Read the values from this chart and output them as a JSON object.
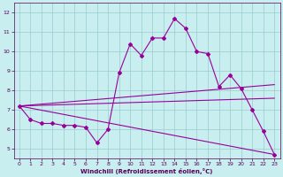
{
  "xlabel": "Windchill (Refroidissement éolien,°C)",
  "ylabel": "",
  "xlim": [
    -0.5,
    23.5
  ],
  "ylim": [
    4.5,
    12.5
  ],
  "xticks": [
    0,
    1,
    2,
    3,
    4,
    5,
    6,
    7,
    8,
    9,
    10,
    11,
    12,
    13,
    14,
    15,
    16,
    17,
    18,
    19,
    20,
    21,
    22,
    23
  ],
  "yticks": [
    5,
    6,
    7,
    8,
    9,
    10,
    11,
    12
  ],
  "bg_color": "#c8eef0",
  "line_color": "#990099",
  "grid_color": "#99cccc",
  "line1_x": [
    0,
    1,
    2,
    3,
    4,
    5,
    6,
    7,
    8,
    9,
    10,
    11,
    12,
    13,
    14,
    15,
    16,
    17,
    18,
    19,
    20,
    21,
    22,
    23
  ],
  "line1_y": [
    7.2,
    6.5,
    6.3,
    6.3,
    6.2,
    6.2,
    6.1,
    5.3,
    6.0,
    8.9,
    10.4,
    9.8,
    10.7,
    10.7,
    11.7,
    11.2,
    10.0,
    9.9,
    8.2,
    8.8,
    8.1,
    7.0,
    5.9,
    4.7
  ],
  "line2_x": [
    0,
    23
  ],
  "line2_y": [
    7.2,
    8.3
  ],
  "line3_x": [
    0,
    23
  ],
  "line3_y": [
    7.2,
    7.6
  ],
  "line4_x": [
    0,
    23
  ],
  "line4_y": [
    7.2,
    4.7
  ]
}
